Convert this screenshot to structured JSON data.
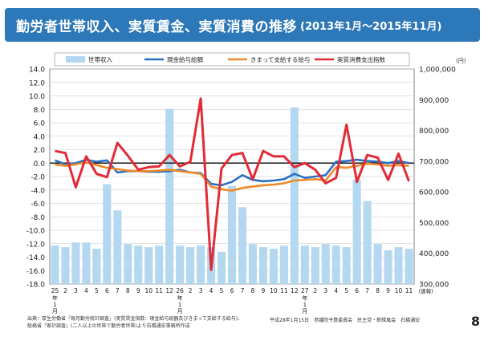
{
  "title": {
    "main": "勤労者世帯収入、実質賃金、実質消費の推移",
    "sub": "(2013年1月～2015年11月)"
  },
  "footer": {
    "source_line1": "出典：厚生労働省「毎月勤労統計調査」(実質賃金指数：現金給与総額及びきまって支給する給与)、",
    "source_line2": "総務省「家計調査」(二人以上の世帯で勤労者世帯)より石橋通宏事務所作成",
    "credit": "平成28年1月15日　参議院予算委員会　民主党・新緑風会　石橋通宏",
    "page_number": "8"
  },
  "chart_data": {
    "type": "bar",
    "x": [
      "25年1月",
      "2",
      "3",
      "4",
      "5",
      "6",
      "7",
      "8",
      "9",
      "10",
      "11",
      "12",
      "26年1月",
      "2",
      "3",
      "4",
      "5",
      "6",
      "7",
      "8",
      "9",
      "10",
      "11",
      "12",
      "27年1月",
      "2",
      "3",
      "4",
      "5",
      "6",
      "7",
      "8",
      "9",
      "10",
      "11"
    ],
    "tick_labels": [
      "25",
      "2",
      "3",
      "4",
      "5",
      "6",
      "7",
      "8",
      "9",
      "10",
      "11",
      "12",
      "26",
      "2",
      "3",
      "4",
      "5",
      "6",
      "7",
      "8",
      "9",
      "10",
      "11",
      "12",
      "27",
      "2",
      "3",
      "4",
      "5",
      "6",
      "7",
      "8",
      "9",
      "10",
      "11"
    ],
    "year_marks": [
      {
        "index": 0,
        "label": "年",
        "sub": "1",
        "sub2": "月"
      },
      {
        "index": 12,
        "label": "年",
        "sub": "1",
        "sub2": "月"
      },
      {
        "index": 24,
        "label": "年",
        "sub": "1",
        "sub2": "月"
      }
    ],
    "last_tick_note": "(速報)",
    "left_axis": {
      "range": [
        -18,
        14
      ],
      "ticks": [
        14,
        12,
        10,
        8,
        6,
        4,
        2,
        0,
        -2,
        -4,
        -6,
        -8,
        -10,
        -12,
        -14,
        -16,
        -18
      ],
      "tick_labels": [
        "14.0",
        "12.0",
        "10.0",
        "8.0",
        "6.0",
        "4.0",
        "2.0",
        "0.0",
        "-2.0",
        "-4.0",
        "-6.0",
        "-8.0",
        "-10.0",
        "-12.0",
        "-14.0",
        "-16.0",
        "-18.0"
      ]
    },
    "right_axis": {
      "unit": "(円)",
      "range": [
        300000,
        1000000
      ],
      "ticks": [
        1000000,
        900000,
        800000,
        700000,
        600000,
        500000,
        400000,
        300000
      ],
      "tick_labels": [
        "1,000,000",
        "900,000",
        "800,000",
        "700,000",
        "600,000",
        "500,000",
        "400,000",
        "300,000"
      ]
    },
    "grid": true,
    "legend_position": "top",
    "series": [
      {
        "name": "世帯収入",
        "kind": "bar",
        "axis": "right",
        "color": "#b4d8f0",
        "values": [
          425000,
          420000,
          435000,
          435000,
          415000,
          625000,
          540000,
          430000,
          425000,
          420000,
          425000,
          870000,
          425000,
          420000,
          425000,
          420000,
          405000,
          620000,
          550000,
          430000,
          420000,
          415000,
          425000,
          875000,
          425000,
          420000,
          430000,
          425000,
          420000,
          640000,
          570000,
          430000,
          410000,
          420000,
          415000
        ]
      },
      {
        "name": "現金給与総額",
        "kind": "line",
        "axis": "left",
        "color": "#2a6fc4",
        "values": [
          0.4,
          -0.2,
          0.0,
          0.5,
          0.2,
          0.4,
          -1.4,
          -1.2,
          -1.2,
          -1.3,
          -1.3,
          -1.2,
          -1.0,
          -1.4,
          -1.5,
          -3.1,
          -3.3,
          -2.8,
          -1.8,
          -2.5,
          -2.7,
          -2.6,
          -2.4,
          -1.6,
          -2.2,
          -2.0,
          -1.8,
          0.2,
          0.3,
          0.5,
          0.3,
          0.2,
          0.0,
          0.3,
          0.0
        ]
      },
      {
        "name": "きまって支給する給与",
        "kind": "line",
        "axis": "left",
        "color": "#ee8a2a",
        "values": [
          -0.2,
          -0.4,
          -0.2,
          0.1,
          -0.3,
          -0.7,
          -0.9,
          -1.1,
          -1.2,
          -1.2,
          -1.1,
          -1.0,
          -1.2,
          -1.4,
          -1.6,
          -3.5,
          -3.9,
          -4.1,
          -3.7,
          -3.5,
          -3.3,
          -3.2,
          -3.0,
          -2.6,
          -2.5,
          -2.4,
          -2.6,
          -0.6,
          -0.7,
          -0.4,
          -0.1,
          -0.2,
          -0.4,
          -0.3,
          -0.4
        ]
      },
      {
        "name": "実質消費支出指数",
        "kind": "line",
        "axis": "left",
        "color": "#e22b36",
        "values": [
          1.8,
          1.5,
          -3.6,
          1.0,
          -1.6,
          -2.1,
          3.0,
          1.1,
          -1.0,
          -0.6,
          -0.5,
          1.2,
          -0.5,
          0.2,
          9.6,
          -15.9,
          -0.8,
          1.2,
          1.5,
          -2.4,
          1.8,
          1.0,
          1.0,
          -0.6,
          0.0,
          -1.0,
          -3.0,
          -2.2,
          5.7,
          -2.8,
          1.2,
          0.8,
          -2.5,
          1.4,
          -2.7
        ]
      }
    ]
  }
}
